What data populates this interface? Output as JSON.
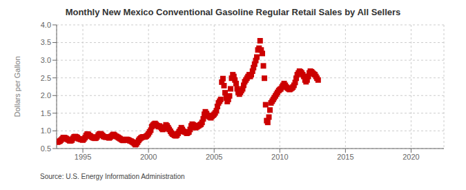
{
  "chart_data": {
    "type": "scatter",
    "title": "Monthly New Mexico Conventional Gasoline Regular Retail Sales by All Sellers",
    "y_label": "Dollars per Gallon",
    "annotations": [
      "Source: U.S. Energy Information Administration"
    ],
    "xlim": [
      1993.0,
      2022.5
    ],
    "ylim": [
      0.5,
      4.0
    ],
    "xticks": [
      1995,
      2000,
      2005,
      2010,
      2015,
      2020
    ],
    "yticks": [
      0.5,
      {
        "value": 1.0,
        "label": "1.0"
      },
      1.5,
      {
        "value": 2.0,
        "label": "2.0"
      },
      2.5,
      {
        "value": 3.0,
        "label": "3.0"
      },
      3.5,
      {
        "value": 4.0,
        "label": "4.0"
      }
    ],
    "grid": true,
    "color": "#CC0000",
    "marker": "square",
    "x": [
      1993.08,
      1993.17,
      1993.25,
      1993.33,
      1993.42,
      1993.5,
      1993.58,
      1993.67,
      1993.75,
      1993.83,
      1993.92,
      1994.0,
      1994.08,
      1994.17,
      1994.25,
      1994.33,
      1994.42,
      1994.5,
      1994.58,
      1994.67,
      1994.75,
      1994.83,
      1994.92,
      1995.0,
      1995.08,
      1995.17,
      1995.25,
      1995.33,
      1995.42,
      1995.5,
      1995.58,
      1995.67,
      1995.75,
      1995.83,
      1995.92,
      1996.0,
      1996.08,
      1996.17,
      1996.25,
      1996.33,
      1996.42,
      1996.5,
      1996.58,
      1996.67,
      1996.75,
      1996.83,
      1996.92,
      1997.0,
      1997.08,
      1997.17,
      1997.25,
      1997.33,
      1997.42,
      1997.5,
      1997.58,
      1997.67,
      1997.75,
      1997.83,
      1997.92,
      1998.0,
      1998.08,
      1998.17,
      1998.25,
      1998.33,
      1998.42,
      1998.5,
      1998.58,
      1998.67,
      1998.75,
      1998.83,
      1998.92,
      1999.0,
      1999.08,
      1999.17,
      1999.25,
      1999.33,
      1999.42,
      1999.5,
      1999.58,
      1999.67,
      1999.75,
      1999.83,
      1999.92,
      2000.0,
      2000.08,
      2000.17,
      2000.25,
      2000.33,
      2000.42,
      2000.5,
      2000.58,
      2000.67,
      2000.75,
      2000.83,
      2000.92,
      2001.0,
      2001.08,
      2001.17,
      2001.25,
      2001.33,
      2001.42,
      2001.5,
      2001.58,
      2001.67,
      2001.75,
      2001.83,
      2001.92,
      2002.0,
      2002.08,
      2002.17,
      2002.25,
      2002.33,
      2002.42,
      2002.5,
      2002.58,
      2002.67,
      2002.75,
      2002.83,
      2002.92,
      2003.0,
      2003.08,
      2003.17,
      2003.25,
      2003.33,
      2003.42,
      2003.5,
      2003.58,
      2003.67,
      2003.75,
      2003.83,
      2003.92,
      2004.0,
      2004.08,
      2004.17,
      2004.25,
      2004.33,
      2004.42,
      2004.5,
      2004.58,
      2004.67,
      2004.75,
      2004.83,
      2004.92,
      2005.0,
      2005.08,
      2005.17,
      2005.25,
      2005.33,
      2005.42,
      2005.5,
      2005.58,
      2005.67,
      2005.75,
      2005.83,
      2005.92,
      2006.0,
      2006.08,
      2006.17,
      2006.25,
      2006.33,
      2006.42,
      2006.5,
      2006.58,
      2006.67,
      2006.75,
      2006.83,
      2006.92,
      2007.0,
      2007.08,
      2007.17,
      2007.25,
      2007.33,
      2007.42,
      2007.5,
      2007.58,
      2007.67,
      2007.75,
      2007.83,
      2007.92,
      2008.0,
      2008.08,
      2008.17,
      2008.25,
      2008.33,
      2008.42,
      2008.5,
      2008.58,
      2008.67,
      2008.75,
      2008.83,
      2008.92,
      2009.0,
      2009.08,
      2009.17,
      2009.25,
      2009.33,
      2009.42,
      2009.5,
      2009.58,
      2009.67,
      2009.75,
      2009.83,
      2009.92,
      2010.0,
      2010.08,
      2010.17,
      2010.25,
      2010.33,
      2010.42,
      2010.5,
      2010.58,
      2010.67,
      2010.75,
      2010.83,
      2010.92,
      2011.0,
      2011.08,
      2011.17,
      2011.25,
      2011.33,
      2011.42,
      2011.5,
      2011.58,
      2011.67,
      2011.75,
      2011.83,
      2011.92,
      2012.0,
      2012.08,
      2012.17,
      2012.25,
      2012.33,
      2012.42,
      2012.5,
      2012.58,
      2012.67,
      2012.75,
      2012.83,
      2012.92
    ],
    "values": [
      0.68,
      0.7,
      0.71,
      0.74,
      0.77,
      0.81,
      0.81,
      0.8,
      0.78,
      0.76,
      0.74,
      0.72,
      0.72,
      0.74,
      0.79,
      0.83,
      0.84,
      0.83,
      0.81,
      0.78,
      0.77,
      0.76,
      0.75,
      0.74,
      0.77,
      0.81,
      0.87,
      0.91,
      0.9,
      0.87,
      0.85,
      0.83,
      0.81,
      0.8,
      0.79,
      0.8,
      0.83,
      0.88,
      0.91,
      0.92,
      0.9,
      0.87,
      0.84,
      0.83,
      0.82,
      0.83,
      0.82,
      0.8,
      0.82,
      0.85,
      0.88,
      0.9,
      0.88,
      0.85,
      0.84,
      0.82,
      0.8,
      0.78,
      0.76,
      0.74,
      0.73,
      0.74,
      0.75,
      0.76,
      0.75,
      0.74,
      0.72,
      0.71,
      0.69,
      0.67,
      0.64,
      0.61,
      0.63,
      0.68,
      0.73,
      0.77,
      0.8,
      0.82,
      0.83,
      0.83,
      0.83,
      0.85,
      0.88,
      0.92,
      0.97,
      1.02,
      1.12,
      1.16,
      1.19,
      1.21,
      1.18,
      1.15,
      1.12,
      1.14,
      1.11,
      1.07,
      1.04,
      1.06,
      1.11,
      1.17,
      1.14,
      1.09,
      1.04,
      0.99,
      0.94,
      0.91,
      0.89,
      0.87,
      0.86,
      0.88,
      0.93,
      0.98,
      1.03,
      1.09,
      1.04,
      0.99,
      0.97,
      0.96,
      0.93,
      0.95,
      0.97,
      1.04,
      1.14,
      1.19,
      1.17,
      1.11,
      1.09,
      1.11,
      1.13,
      1.15,
      1.17,
      1.19,
      1.24,
      1.34,
      1.47,
      1.54,
      1.49,
      1.44,
      1.41,
      1.39,
      1.37,
      1.41,
      1.44,
      1.47,
      1.51,
      1.57,
      1.69,
      1.79,
      1.84,
      1.89,
      2.38,
      2.48,
      2.28,
      2.08,
      1.93,
      1.83,
      1.89,
      1.99,
      2.19,
      2.49,
      2.59,
      2.54,
      2.44,
      2.34,
      2.19,
      2.09,
      2.04,
      2.09,
      2.14,
      2.19,
      2.29,
      2.39,
      2.44,
      2.49,
      2.54,
      2.59,
      2.54,
      2.59,
      2.69,
      2.79,
      2.89,
      2.99,
      3.09,
      3.29,
      3.34,
      3.55,
      3.29,
      3.19,
      2.84,
      2.49,
      1.74,
      1.29,
      1.24,
      1.39,
      1.59,
      1.79,
      1.84,
      1.89,
      1.94,
      1.99,
      2.04,
      2.09,
      2.14,
      2.17,
      2.19,
      2.24,
      2.29,
      2.34,
      2.29,
      2.24,
      2.21,
      2.19,
      2.17,
      2.19,
      2.21,
      2.24,
      2.29,
      2.37,
      2.49,
      2.59,
      2.64,
      2.69,
      2.67,
      2.64,
      2.59,
      2.54,
      2.44,
      2.39,
      2.44,
      2.54,
      2.64,
      2.69,
      2.67,
      2.64,
      2.61,
      2.59,
      2.54,
      2.49,
      2.44
    ]
  }
}
